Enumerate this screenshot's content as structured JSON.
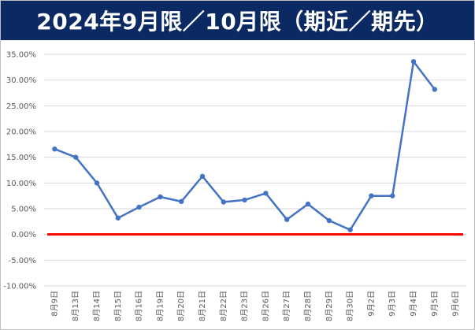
{
  "header": {
    "title": "2024年9月限／10月限（期近／期先）"
  },
  "chart_data": {
    "type": "line",
    "title": "2024年9月限／10月限（期近／期先）",
    "xlabel": "",
    "ylabel": "",
    "categories": [
      "8月9日",
      "8月13日",
      "8月14日",
      "8月15日",
      "8月16日",
      "8月19日",
      "8月20日",
      "8月21日",
      "8月22日",
      "8月23日",
      "8月26日",
      "8月27日",
      "8月28日",
      "8月29日",
      "8月30日",
      "9月2日",
      "9月3日",
      "9月4日",
      "9月5日",
      "9月6日"
    ],
    "series": [
      {
        "color": "#4472c4",
        "values": [
          16.6,
          15.0,
          10.0,
          3.2,
          5.3,
          7.3,
          6.4,
          11.3,
          6.3,
          6.7,
          8.0,
          2.9,
          5.9,
          2.7,
          0.9,
          7.5,
          7.5,
          33.6,
          28.2,
          null
        ]
      }
    ],
    "yticks": [
      "-10.00%",
      "-5.00%",
      "0.00%",
      "5.00%",
      "10.00%",
      "15.00%",
      "20.00%",
      "25.00%",
      "30.00%",
      "35.00%"
    ],
    "ylim": [
      -10,
      35
    ],
    "reference_line": {
      "value": 0,
      "color": "#ff0000"
    },
    "grid": true,
    "legend": "none"
  },
  "colors": {
    "title_bg": "#0b2a63",
    "title_text": "#ffffff",
    "gridline": "#d9d9d9",
    "tick_text": "#595959"
  }
}
